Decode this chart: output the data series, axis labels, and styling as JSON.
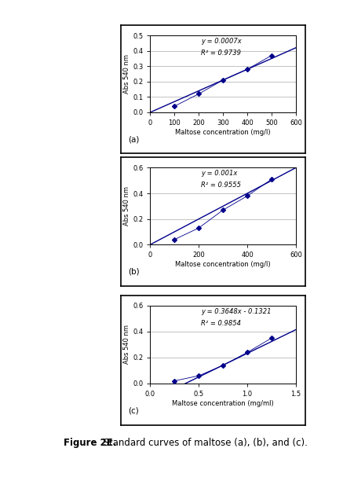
{
  "fig_width": 4.52,
  "fig_height": 6.4,
  "background_color": "#ffffff",
  "caption_bold": "Figure 2E.",
  "caption_rest": "  Standard curves of maltose (a), (b), and (c).",
  "caption_fontsize": 8.5,
  "subplots": [
    {
      "label": "(a)",
      "equation": "y = 0.0007x",
      "r2": "R² = 0.9739",
      "x_data": [
        100,
        200,
        300,
        400,
        500
      ],
      "y_data": [
        0.04,
        0.12,
        0.21,
        0.28,
        0.37
      ],
      "xlabel": "Maltose concentration (mg/l)",
      "ylabel": "Abs 540 nm",
      "xlim": [
        0,
        600
      ],
      "ylim": [
        0,
        0.5
      ],
      "xticks": [
        0,
        100,
        200,
        300,
        400,
        500,
        600
      ],
      "yticks": [
        0,
        0.1,
        0.2,
        0.3,
        0.4,
        0.5
      ],
      "slope": 0.0007,
      "intercept": 0.0
    },
    {
      "label": "(b)",
      "equation": "y = 0.001x",
      "r2": "R² = 0.9555",
      "x_data": [
        100,
        200,
        300,
        400,
        500
      ],
      "y_data": [
        0.04,
        0.13,
        0.27,
        0.38,
        0.51
      ],
      "xlabel": "Maltose concentration (mg/l)",
      "ylabel": "Abs 540 nm",
      "xlim": [
        0,
        600
      ],
      "ylim": [
        0,
        0.6
      ],
      "xticks": [
        0,
        200,
        400,
        600
      ],
      "yticks": [
        0,
        0.2,
        0.4,
        0.6
      ],
      "slope": 0.001,
      "intercept": 0.0
    },
    {
      "label": "(c)",
      "equation": "y = 0.3648x - 0.1321",
      "r2": "R² = 0.9854",
      "x_data": [
        0.25,
        0.5,
        0.75,
        1.0,
        1.25
      ],
      "y_data": [
        0.02,
        0.06,
        0.14,
        0.24,
        0.35
      ],
      "xlabel": "Maltose concentration (mg/ml)",
      "ylabel": "Abs 540 nm",
      "xlim": [
        0,
        1.5
      ],
      "ylim": [
        0,
        0.6
      ],
      "xticks": [
        0,
        0.5,
        1.0,
        1.5
      ],
      "yticks": [
        0,
        0.2,
        0.4,
        0.6
      ],
      "slope": 0.3648,
      "intercept": -0.1321
    }
  ],
  "line_color": "#00008B",
  "marker_color": "#00008B",
  "marker": "D",
  "markersize": 3,
  "linewidth": 1.0,
  "tick_fontsize": 6,
  "label_fontsize": 6,
  "annot_fontsize": 6
}
